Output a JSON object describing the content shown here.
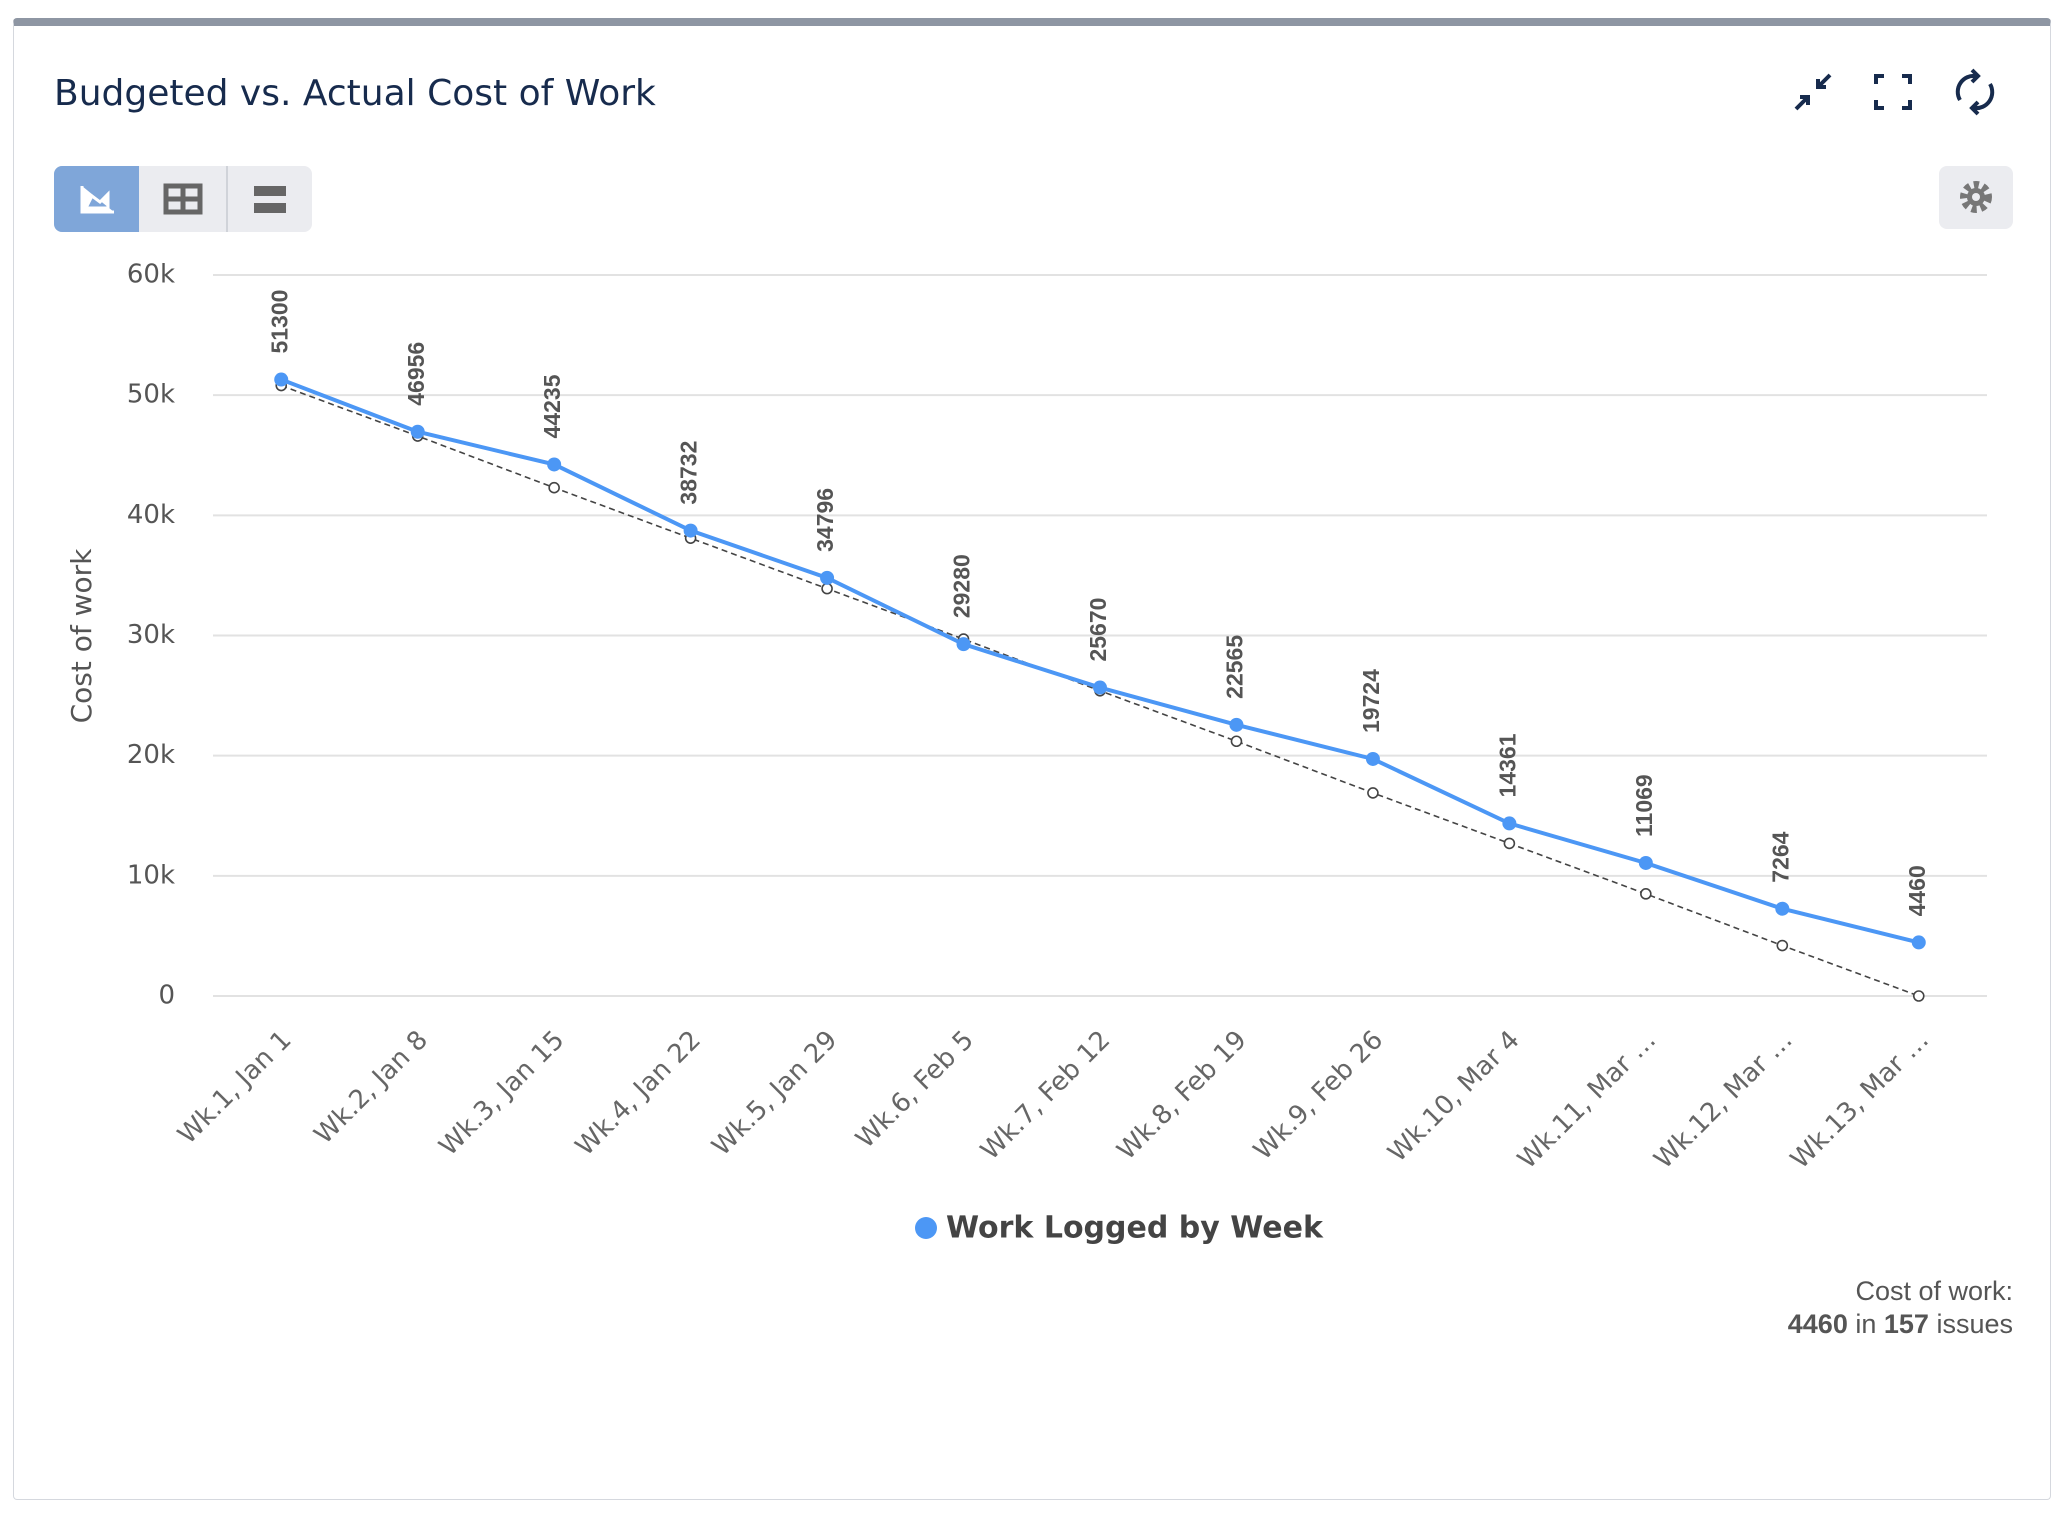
{
  "chart_data": {
    "type": "line",
    "title": "Budgeted vs. Actual Cost of Work",
    "y_label": "Cost of work",
    "categories": [
      "Wk.1, Jan 1",
      "Wk.2, Jan 8",
      "Wk.3, Jan 15",
      "Wk.4, Jan 22",
      "Wk.5, Jan 29",
      "Wk.6, Feb 5",
      "Wk.7, Feb 12",
      "Wk.8, Feb 19",
      "Wk.9, Feb 26",
      "Wk.10, Mar 4",
      "Wk.11, Mar …",
      "Wk.12, Mar …",
      "Wk.13, Mar …"
    ],
    "series": [
      {
        "name": "Work Logged by Week",
        "color": "#4c97f5",
        "values": [
          51300,
          46956,
          44235,
          38732,
          34796,
          29280,
          25670,
          22565,
          19724,
          14361,
          11069,
          7264,
          4460
        ],
        "data_labels": true
      },
      {
        "color": "#444444",
        "dashed": true,
        "values": [
          50800,
          46600,
          42300,
          38100,
          33900,
          29700,
          25400,
          21200,
          16900,
          12700,
          8500,
          4200,
          0
        ]
      }
    ],
    "ylim": [
      0,
      60000
    ],
    "yticks": [
      0,
      {
        "value": 10000,
        "label": "10k"
      },
      {
        "value": 20000,
        "label": "20k"
      },
      {
        "value": 30000,
        "label": "30k"
      },
      {
        "value": 40000,
        "label": "40k"
      },
      {
        "value": 50000,
        "label": "50k"
      },
      {
        "value": 60000,
        "label": "60k"
      }
    ],
    "grid": true,
    "legend": "bottom"
  },
  "summary": {
    "label": "Cost of work:",
    "value": 4460,
    "joiner": "in",
    "count": 157,
    "unit": "issues"
  }
}
